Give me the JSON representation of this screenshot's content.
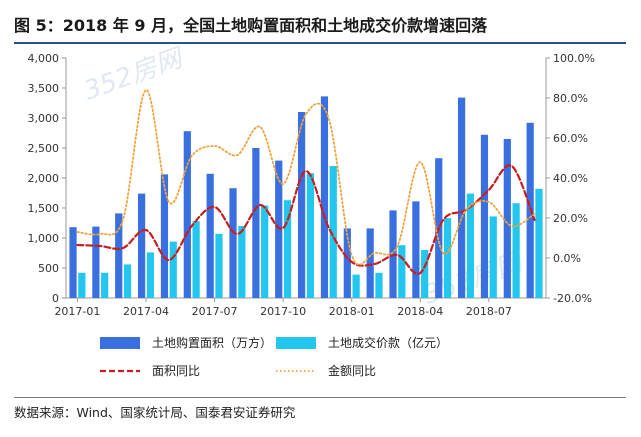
{
  "header": {
    "title": "图 5：2018 年 9 月，全国土地购置面积和土地成交价款增速回落"
  },
  "footer": {
    "source": "数据来源：Wind、国家统计局、国泰君安证券研究"
  },
  "watermarks": [
    "352房网",
    "352房网"
  ],
  "chart_data": {
    "type": "bar",
    "x": [
      "2017-01",
      "2017-02",
      "2017-03",
      "2017-04",
      "2017-05",
      "2017-06",
      "2017-07",
      "2017-08",
      "2017-09",
      "2017-10",
      "2017-11",
      "2017-12",
      "2018-01",
      "2018-02",
      "2018-03",
      "2018-04",
      "2018-05",
      "2018-06",
      "2018-07",
      "2018-08",
      "2018-09"
    ],
    "x_tick_labels": [
      "2017-01",
      "2017-04",
      "2017-07",
      "2017-10",
      "2018-01",
      "2018-04",
      "2018-07"
    ],
    "x_tick_indices": [
      0,
      3,
      6,
      9,
      12,
      15,
      18
    ],
    "y_left": {
      "ticks": [
        "0",
        "500",
        "1,000",
        "1,500",
        "2,000",
        "2,500",
        "3,000",
        "3,500",
        "4,000"
      ],
      "range": [
        0,
        4000
      ]
    },
    "y_right": {
      "ticks": [
        "-20.0%",
        "0.0%",
        "20.0%",
        "40.0%",
        "60.0%",
        "80.0%",
        "100.0%"
      ],
      "range": [
        -20,
        100
      ]
    },
    "grid": false,
    "legend_position": "bottom",
    "series": [
      {
        "name": "土地购置面积（万方）",
        "kind": "bar",
        "axis": "left",
        "color": "#3a6fe0",
        "values": [
          1180,
          1190,
          1410,
          1740,
          2060,
          2780,
          2070,
          1830,
          2500,
          2290,
          3100,
          3360,
          1160,
          1160,
          1460,
          1610,
          2330,
          3340,
          2720,
          2650,
          2920
        ]
      },
      {
        "name": "土地成交价款（亿元）",
        "kind": "bar",
        "axis": "left",
        "color": "#22c6ee",
        "values": [
          420,
          420,
          560,
          760,
          940,
          1280,
          1070,
          1200,
          1540,
          1630,
          2080,
          2200,
          390,
          420,
          880,
          800,
          1330,
          1740,
          1360,
          1580,
          1820
        ]
      },
      {
        "name": "面积同比",
        "kind": "line",
        "axis": "right",
        "color": "#c81e1e",
        "style": "dashed",
        "values": [
          6.5,
          6.0,
          5.0,
          14.0,
          -1.0,
          16.0,
          25.5,
          12.0,
          26.5,
          15.0,
          43.5,
          15.0,
          -2.0,
          -3.0,
          1.5,
          -7.5,
          19.0,
          24.0,
          34.0,
          46.0,
          19.0
        ]
      },
      {
        "name": "金额同比",
        "kind": "line",
        "axis": "right",
        "color": "#f0a23c",
        "style": "dotted",
        "values": [
          13.0,
          12.0,
          19.5,
          84.0,
          28.0,
          51.0,
          56.0,
          51.5,
          65.5,
          37.0,
          72.0,
          69.5,
          1.5,
          2.5,
          6.0,
          48.0,
          2.5,
          24.0,
          28.0,
          16.0,
          22.0
        ]
      }
    ]
  }
}
